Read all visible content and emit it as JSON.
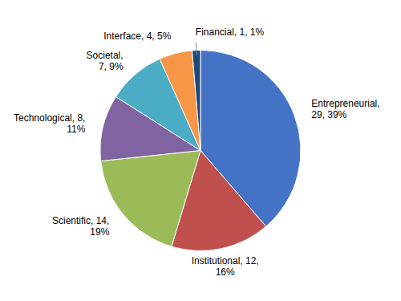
{
  "chart_data": {
    "type": "pie",
    "categories": [
      "Entrepreneurial",
      "Institutional",
      "Scientific",
      "Technological",
      "Societal",
      "Interface",
      "Financial"
    ],
    "values": [
      29,
      12,
      14,
      8,
      7,
      4,
      1
    ],
    "percentages": [
      39,
      16,
      19,
      11,
      9,
      5,
      1
    ],
    "colors": [
      "#4472C4",
      "#C0504D",
      "#9BBB59",
      "#8064A2",
      "#4BACC6",
      "#F79646",
      "#1F497D"
    ],
    "data_labels": true,
    "value_labels": [
      "Entrepreneurial,\n29, 39%",
      "Institutional, 12,\n16%",
      "Scientific, 14,\n19%",
      "Technological, 8,\n11%",
      "Societal,\n7, 9%",
      "Interface, 4, 5%",
      "Financial, 1, 1%"
    ]
  }
}
